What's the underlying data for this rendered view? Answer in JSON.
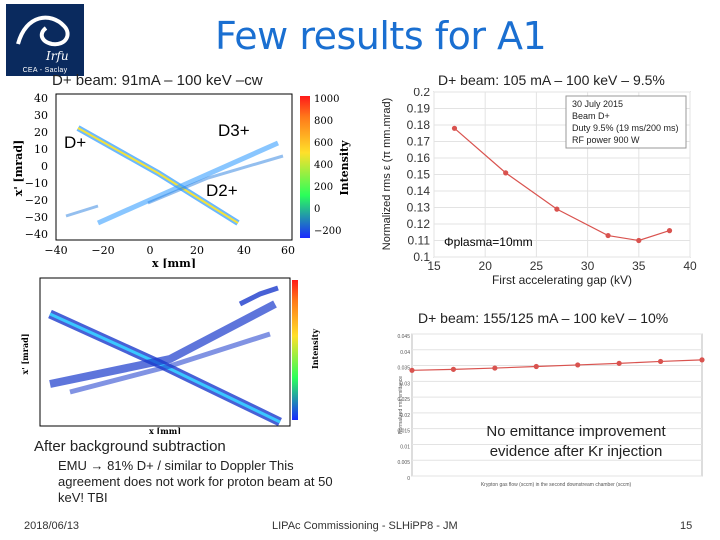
{
  "slide": {
    "title": "Few results for A1",
    "logo_text": "CEA - Saclay",
    "logo_script": "Irfu",
    "date": "2018/06/13",
    "footer_center": "LIPAc Commissioning - SLHiPP8 - JM",
    "page_number": "15"
  },
  "panel1": {
    "caption": "D+ beam: 91mA – 100 keV –cw",
    "label_dplus": "D+",
    "label_d3": "D3+",
    "label_d2": "D2+",
    "x_axis_label": "x [mm]",
    "y_axis_label": "x' [mrad]",
    "colorbar_label": "Intensity",
    "x_ticks": [
      "−40",
      "−20",
      "0",
      "20",
      "40",
      "60"
    ],
    "y_ticks": [
      "40",
      "30",
      "20",
      "10",
      "0",
      "−10",
      "−20",
      "−30",
      "−40"
    ],
    "colorbar_ticks": [
      "1000",
      "800",
      "600",
      "400",
      "200",
      "0",
      "−200"
    ]
  },
  "panel2": {
    "caption": "After background subtraction",
    "x_axis_label": "x [mm]",
    "y_axis_label": "x' [mrad]",
    "colorbar_label": "Intensity",
    "note": "EMU → 81% D+ / similar to Doppler This agreement does not work for proton beam at 50 keV! TBI"
  },
  "panel3": {
    "caption": "D+ beam: 105 mA – 100 keV – 9.5%",
    "legend_lines": [
      "30 July 2015",
      "Beam D+",
      "Duty 9.5% (19 ms/200 ms)",
      "RF power 900 W"
    ],
    "annotation": "Φplasma=10mm",
    "y_axis_label": "Normalized rms ε (π mm.mrad)",
    "x_axis_label": "First accelerating gap (kV)",
    "y_ticks": [
      "0.2",
      "0.19",
      "0.18",
      "0.17",
      "0.16",
      "0.15",
      "0.14",
      "0.13",
      "0.12",
      "0.11",
      "0.1"
    ],
    "x_ticks": [
      "15",
      "20",
      "25",
      "30",
      "35",
      "40"
    ]
  },
  "panel4": {
    "caption": "D+ beam: 155/125 mA – 100 keV – 10%",
    "annotation": "No emittance improvement evidence after Kr injection",
    "x_axis_label": "Krypton gas flow (sccm) in the second downstream chamber (sccm)",
    "y_axis_label": "Normalized rms emittance",
    "y_ticks": [
      "0.045",
      "0.04",
      "0.035",
      "0.03",
      "0.025",
      "0.02",
      "0.015",
      "0.01",
      "0.005",
      "0"
    ]
  },
  "chart_data": [
    {
      "type": "line",
      "title": "D+ beam: 105 mA – 100 keV – 9.5%",
      "xlabel": "First accelerating gap (kV)",
      "ylabel": "Normalized rms ε (π mm.mrad)",
      "xlim": [
        15,
        40
      ],
      "ylim": [
        0.1,
        0.2
      ],
      "series": [
        {
          "x": [
            17,
            22,
            27,
            32,
            35,
            38
          ],
          "y": [
            0.178,
            0.151,
            0.129,
            0.113,
            0.11,
            0.116
          ]
        }
      ],
      "grid": true,
      "color": "#d9534f"
    },
    {
      "type": "line",
      "title": "D+ beam: 155/125 mA – 100 keV – 10%",
      "ylim": [
        0,
        0.045
      ],
      "series": [
        {
          "x": [
            0,
            1,
            2,
            3,
            4,
            5,
            6,
            7
          ],
          "y": [
            0.0335,
            0.0338,
            0.0342,
            0.0347,
            0.0352,
            0.0357,
            0.0363,
            0.0368
          ]
        }
      ],
      "grid": true,
      "color": "#d9534f"
    }
  ]
}
